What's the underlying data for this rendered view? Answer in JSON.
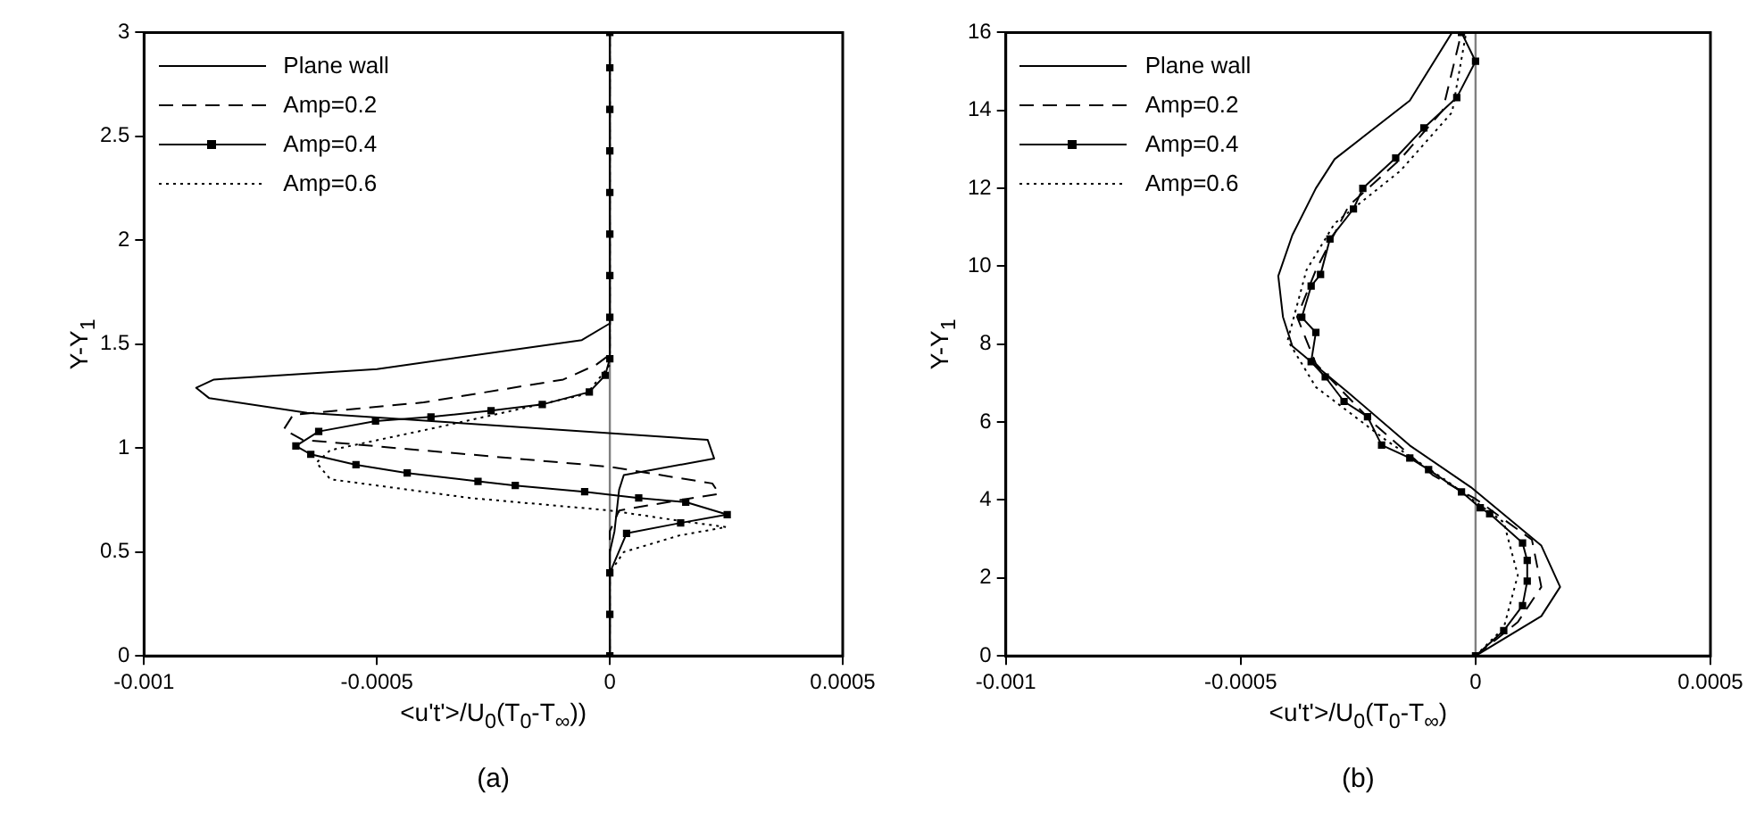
{
  "chart_data": [
    {
      "type": "line",
      "xlabel": "<u't'>/U$_{0}$(T$_{0}$-T$_{∞}$))",
      "ylabel": "Y-Y$_{1}$",
      "annotations": [
        "(a)"
      ],
      "xlim": [
        -0.001,
        0.0005
      ],
      "xticks": [
        -0.001,
        -0.0005,
        0,
        0.0005
      ],
      "ylim": [
        0,
        3
      ],
      "yticks": [
        0,
        0.5,
        1,
        1.5,
        2,
        2.5,
        3
      ],
      "legend": "top left",
      "ref_lines": [
        {
          "axis": "x",
          "value": 0,
          "color": "#808080"
        }
      ],
      "series": [
        {
          "name": "Plane wall",
          "color": "#000000",
          "line_style": "solid",
          "marker": "none",
          "x": [
            0,
            0,
            1e-05,
            2e-05,
            3e-05,
            0.000224,
            0.00021,
            -0.00065,
            -0.00086,
            -0.000888,
            -0.00085,
            -0.0005,
            -6e-05,
            0,
            0
          ],
          "values": [
            0,
            0.5,
            0.6,
            0.8,
            0.87,
            0.95,
            1.04,
            1.17,
            1.24,
            1.29,
            1.33,
            1.38,
            1.52,
            1.6,
            3
          ]
        },
        {
          "name": "Amp=0.2",
          "color": "#000000",
          "line_style": "dashed",
          "marker": "none",
          "x": [
            0,
            0,
            2e-05,
            0.00015,
            0.000235,
            0.00022,
            0,
            -0.00066,
            -0.0007,
            -0.00068,
            -0.0004,
            -0.0001,
            -3e-05,
            0,
            0
          ],
          "values": [
            0,
            0.6,
            0.7,
            0.75,
            0.78,
            0.83,
            0.91,
            1.04,
            1.09,
            1.16,
            1.22,
            1.33,
            1.4,
            1.45,
            3
          ]
        },
        {
          "name": "Amp=0.4",
          "color": "#000000",
          "line_style": "solid",
          "marker": "square",
          "x": [
            0,
            0,
            0,
            3.6e-05,
            0.000152,
            0.000252,
            0.000163,
            6.2e-05,
            -5.4e-05,
            -0.000203,
            -0.000283,
            -0.000435,
            -0.000545,
            -0.000642,
            -0.000674,
            -0.000625,
            -0.000503,
            -0.000384,
            -0.000255,
            -0.000145,
            -4.4e-05,
            -1e-05,
            0,
            0,
            0,
            0,
            0,
            0,
            0,
            0,
            0
          ],
          "values": [
            0,
            0.2,
            0.4,
            0.59,
            0.64,
            0.68,
            0.74,
            0.76,
            0.79,
            0.82,
            0.84,
            0.88,
            0.92,
            0.97,
            1.01,
            1.08,
            1.13,
            1.15,
            1.18,
            1.21,
            1.27,
            1.35,
            1.43,
            1.63,
            1.83,
            2.03,
            2.23,
            2.43,
            2.63,
            2.83,
            3
          ]
        },
        {
          "name": "Amp=0.6",
          "color": "#000000",
          "line_style": "dotted",
          "marker": "none",
          "x": [
            0,
            0,
            3e-05,
            0.00015,
            0.00025,
            0.00015,
            0,
            -0.0003,
            -0.0006,
            -0.00063,
            -0.0006,
            -0.00037,
            -5e-05,
            0,
            0
          ],
          "values": [
            0,
            0.4,
            0.5,
            0.58,
            0.62,
            0.65,
            0.7,
            0.76,
            0.85,
            0.93,
            0.99,
            1.1,
            1.26,
            1.4,
            3
          ]
        }
      ]
    },
    {
      "type": "line",
      "xlabel": "<u't'>/U$_{0}$(T$_{0}$-T$_{∞}$)",
      "ylabel": "Y-Y$_{1}$",
      "annotations": [
        "(b)"
      ],
      "xlim": [
        -0.001,
        0.0005
      ],
      "xticks": [
        -0.001,
        -0.0005,
        0,
        0.0005
      ],
      "ylim": [
        0,
        16
      ],
      "yticks": [
        0,
        2,
        4,
        6,
        8,
        10,
        12,
        14,
        16
      ],
      "legend": "top left",
      "ref_lines": [
        {
          "axis": "x",
          "value": 0,
          "color": "#808080"
        }
      ],
      "series": [
        {
          "name": "Plane wall",
          "color": "#000000",
          "line_style": "solid",
          "marker": "none",
          "x": [
            0,
            0.00014,
            0.00018,
            0.00014,
            -1e-05,
            -0.00014,
            -0.00027,
            -0.00039,
            -0.00041,
            -0.00042,
            -0.00039,
            -0.00034,
            -0.0003,
            -0.00014,
            -5e-05
          ],
          "values": [
            0,
            1.02,
            1.77,
            2.83,
            4.33,
            5.4,
            6.75,
            7.95,
            8.7,
            9.75,
            10.8,
            12,
            12.75,
            14.25,
            16
          ]
        },
        {
          "name": "Amp=0.2",
          "color": "#000000",
          "line_style": "dashed",
          "marker": "none",
          "x": [
            0,
            9e-05,
            0.00014,
            0.00012,
            0,
            -9e-05,
            -0.00022,
            -0.00034,
            -0.00038,
            -0.00034,
            -0.00027,
            -0.00016,
            -7e-05,
            -3e-05
          ],
          "values": [
            0,
            0.87,
            1.77,
            2.98,
            4.03,
            4.63,
            6,
            7.5,
            8.7,
            9.9,
            11.55,
            12.75,
            14,
            16
          ]
        },
        {
          "name": "Amp=0.4",
          "color": "#000000",
          "line_style": "solid",
          "marker": "square",
          "x": [
            0,
            6e-05,
            0.0001,
            0.00011,
            0.00011,
            0.0001,
            3e-05,
            1e-05,
            -3e-05,
            -0.0001,
            -0.00014,
            -0.0002,
            -0.00023,
            -0.00028,
            -0.00032,
            -0.00035,
            -0.00034,
            -0.00037,
            -0.00035,
            -0.00033,
            -0.00031,
            -0.00026,
            -0.00024,
            -0.00017,
            -0.00011,
            -4e-05,
            0,
            -3e-05
          ],
          "values": [
            0,
            0.65,
            1.29,
            1.92,
            2.45,
            2.9,
            3.65,
            3.8,
            4.21,
            4.78,
            5.08,
            5.41,
            6.14,
            6.53,
            7.16,
            7.55,
            8.3,
            8.69,
            9.49,
            9.79,
            10.7,
            11.47,
            12,
            12.78,
            13.55,
            14.33,
            15.26,
            16
          ]
        },
        {
          "name": "Amp=0.6",
          "color": "#000000",
          "line_style": "dotted",
          "marker": "none",
          "x": [
            0,
            6e-05,
            9e-05,
            6e-05,
            -6e-05,
            -0.00019,
            -0.00034,
            -0.0004,
            -0.00036,
            -0.0003,
            -0.00016,
            -5e-05,
            -2e-05
          ],
          "values": [
            0,
            0.72,
            2.07,
            3.43,
            4.48,
            5.53,
            6.9,
            8.1,
            9.9,
            11.1,
            12.45,
            13.95,
            16
          ]
        }
      ]
    }
  ]
}
